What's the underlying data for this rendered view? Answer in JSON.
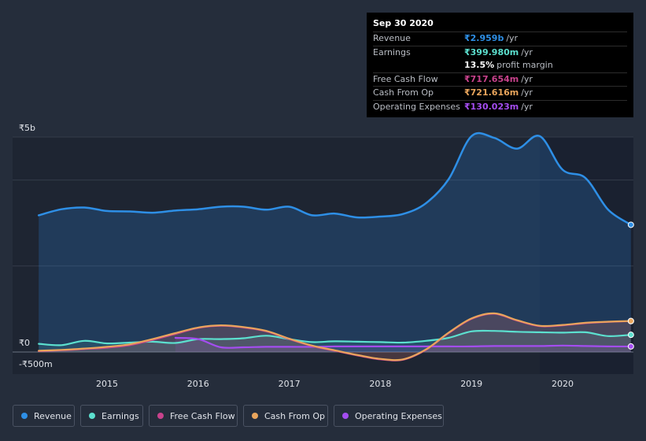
{
  "chart_data": {
    "type": "line",
    "ylim": [
      -500,
      5000
    ],
    "y_ticks": [
      {
        "value": 5000,
        "label": "₹5b"
      },
      {
        "value": 0,
        "label": "₹0"
      },
      {
        "value": -500,
        "label": "-₹500m"
      }
    ],
    "x_ticks": [
      {
        "value": 2015,
        "label": "2015"
      },
      {
        "value": 2016,
        "label": "2016"
      },
      {
        "value": 2017,
        "label": "2017"
      },
      {
        "value": 2018,
        "label": "2018"
      },
      {
        "value": 2019,
        "label": "2019"
      },
      {
        "value": 2020,
        "label": "2020"
      }
    ],
    "xlim": [
      2014.24,
      2020.76
    ],
    "forecast_start": 2019.75,
    "series": [
      {
        "name": "Revenue",
        "color": "#2e8fe6",
        "area": true,
        "points": [
          [
            2014.25,
            3180
          ],
          [
            2014.5,
            3320
          ],
          [
            2014.75,
            3360
          ],
          [
            2015.0,
            3280
          ],
          [
            2015.25,
            3270
          ],
          [
            2015.5,
            3240
          ],
          [
            2015.75,
            3290
          ],
          [
            2016.0,
            3320
          ],
          [
            2016.25,
            3380
          ],
          [
            2016.5,
            3380
          ],
          [
            2016.75,
            3310
          ],
          [
            2017.0,
            3380
          ],
          [
            2017.25,
            3180
          ],
          [
            2017.5,
            3220
          ],
          [
            2017.75,
            3130
          ],
          [
            2018.0,
            3150
          ],
          [
            2018.25,
            3210
          ],
          [
            2018.5,
            3460
          ],
          [
            2018.75,
            4020
          ],
          [
            2019.0,
            5020
          ],
          [
            2019.25,
            4980
          ],
          [
            2019.5,
            4730
          ],
          [
            2019.75,
            5020
          ],
          [
            2020.0,
            4240
          ],
          [
            2020.25,
            4050
          ],
          [
            2020.5,
            3310
          ],
          [
            2020.75,
            2959
          ]
        ]
      },
      {
        "name": "Earnings",
        "color": "#5ce0cf",
        "area": false,
        "points": [
          [
            2014.25,
            190
          ],
          [
            2014.5,
            160
          ],
          [
            2014.75,
            260
          ],
          [
            2015.0,
            200
          ],
          [
            2015.25,
            220
          ],
          [
            2015.5,
            240
          ],
          [
            2015.75,
            210
          ],
          [
            2016.0,
            300
          ],
          [
            2016.25,
            300
          ],
          [
            2016.5,
            320
          ],
          [
            2016.75,
            380
          ],
          [
            2017.0,
            300
          ],
          [
            2017.25,
            230
          ],
          [
            2017.5,
            250
          ],
          [
            2017.75,
            240
          ],
          [
            2018.0,
            230
          ],
          [
            2018.25,
            220
          ],
          [
            2018.5,
            260
          ],
          [
            2018.75,
            330
          ],
          [
            2019.0,
            480
          ],
          [
            2019.25,
            490
          ],
          [
            2019.5,
            470
          ],
          [
            2019.75,
            460
          ],
          [
            2020.0,
            450
          ],
          [
            2020.25,
            460
          ],
          [
            2020.5,
            370
          ],
          [
            2020.75,
            400
          ]
        ]
      },
      {
        "name": "Free Cash Flow",
        "color": "#c8428c",
        "area": false,
        "points": [
          [
            2014.25,
            20
          ],
          [
            2014.5,
            40
          ],
          [
            2014.75,
            70
          ],
          [
            2015.0,
            100
          ],
          [
            2015.25,
            160
          ],
          [
            2015.5,
            280
          ],
          [
            2015.75,
            420
          ],
          [
            2016.0,
            560
          ],
          [
            2016.25,
            610
          ],
          [
            2016.5,
            570
          ],
          [
            2016.75,
            480
          ],
          [
            2017.0,
            300
          ],
          [
            2017.25,
            140
          ],
          [
            2017.5,
            30
          ],
          [
            2017.75,
            -80
          ],
          [
            2018.0,
            -170
          ],
          [
            2018.25,
            -180
          ],
          [
            2018.5,
            50
          ],
          [
            2018.75,
            440
          ],
          [
            2019.0,
            770
          ],
          [
            2019.25,
            890
          ],
          [
            2019.5,
            730
          ],
          [
            2019.75,
            600
          ],
          [
            2020.0,
            620
          ],
          [
            2020.25,
            670
          ],
          [
            2020.5,
            700
          ],
          [
            2020.75,
            718
          ]
        ]
      },
      {
        "name": "Cash From Op",
        "color": "#e9a55c",
        "area": false,
        "points": [
          [
            2014.25,
            30
          ],
          [
            2014.5,
            50
          ],
          [
            2014.75,
            80
          ],
          [
            2015.0,
            120
          ],
          [
            2015.25,
            180
          ],
          [
            2015.5,
            300
          ],
          [
            2015.75,
            440
          ],
          [
            2016.0,
            570
          ],
          [
            2016.25,
            620
          ],
          [
            2016.5,
            580
          ],
          [
            2016.75,
            490
          ],
          [
            2017.0,
            310
          ],
          [
            2017.25,
            150
          ],
          [
            2017.5,
            40
          ],
          [
            2017.75,
            -70
          ],
          [
            2018.0,
            -160
          ],
          [
            2018.25,
            -170
          ],
          [
            2018.5,
            60
          ],
          [
            2018.75,
            450
          ],
          [
            2019.0,
            780
          ],
          [
            2019.25,
            900
          ],
          [
            2019.5,
            740
          ],
          [
            2019.75,
            610
          ],
          [
            2020.0,
            630
          ],
          [
            2020.25,
            680
          ],
          [
            2020.5,
            705
          ],
          [
            2020.75,
            722
          ]
        ]
      },
      {
        "name": "Operating Expenses",
        "color": "#a44df0",
        "area": false,
        "start_index": 6,
        "points": [
          [
            2014.25,
            0
          ],
          [
            2014.5,
            0
          ],
          [
            2014.75,
            0
          ],
          [
            2015.0,
            0
          ],
          [
            2015.25,
            0
          ],
          [
            2015.5,
            0
          ],
          [
            2015.75,
            330
          ],
          [
            2016.0,
            300
          ],
          [
            2016.25,
            110
          ],
          [
            2016.5,
            110
          ],
          [
            2016.75,
            120
          ],
          [
            2017.0,
            120
          ],
          [
            2017.25,
            120
          ],
          [
            2017.5,
            130
          ],
          [
            2017.75,
            130
          ],
          [
            2018.0,
            130
          ],
          [
            2018.25,
            130
          ],
          [
            2018.5,
            130
          ],
          [
            2018.75,
            130
          ],
          [
            2019.0,
            130
          ],
          [
            2019.25,
            140
          ],
          [
            2019.5,
            140
          ],
          [
            2019.75,
            140
          ],
          [
            2020.0,
            150
          ],
          [
            2020.25,
            140
          ],
          [
            2020.5,
            130
          ],
          [
            2020.75,
            130
          ]
        ]
      }
    ]
  },
  "tooltip": {
    "date": "Sep 30 2020",
    "rows": [
      {
        "label": "Revenue",
        "value": "₹2.959b",
        "unit": "/yr",
        "color": "#2e8fe6"
      },
      {
        "label": "Earnings",
        "value": "₹399.980m",
        "unit": "/yr",
        "color": "#5ce0cf"
      },
      {
        "label": "",
        "value": "13.5%",
        "unit": "profit margin",
        "color": "#ffffff"
      },
      {
        "label": "Free Cash Flow",
        "value": "₹717.654m",
        "unit": "/yr",
        "color": "#c8428c"
      },
      {
        "label": "Cash From Op",
        "value": "₹721.616m",
        "unit": "/yr",
        "color": "#e9a55c"
      },
      {
        "label": "Operating Expenses",
        "value": "₹130.023m",
        "unit": "/yr",
        "color": "#a44df0"
      }
    ]
  },
  "legend": [
    {
      "label": "Revenue",
      "color": "#2e8fe6"
    },
    {
      "label": "Earnings",
      "color": "#5ce0cf"
    },
    {
      "label": "Free Cash Flow",
      "color": "#c8428c"
    },
    {
      "label": "Cash From Op",
      "color": "#e9a55c"
    },
    {
      "label": "Operating Expenses",
      "color": "#a44df0"
    }
  ]
}
